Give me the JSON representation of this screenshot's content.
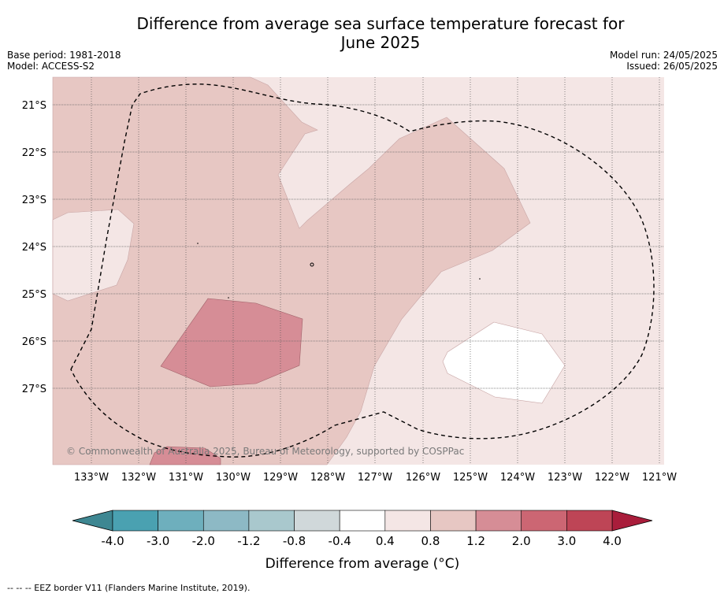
{
  "title_line1": "Difference from average sea surface temperature forecast for",
  "title_line2": "June 2025",
  "base_period": "Base period: 1981-2018",
  "model": "Model: ACCESS-S2",
  "model_run": "Model run: 24/05/2025",
  "issued": "Issued: 26/05/2025",
  "copyright": "© Commonwealth of Australia 2025, Bureau of Meteorology, supported by COSPPac",
  "footnote": "--  --  -- EEZ border V11 (Flanders Marine Institute, 2019).",
  "lat_labels": [
    "21°S",
    "22°S",
    "23°S",
    "24°S",
    "25°S",
    "26°S",
    "27°S"
  ],
  "lon_labels": [
    "133°W",
    "132°W",
    "131°W",
    "130°W",
    "129°W",
    "128°W",
    "127°W",
    "126°W",
    "125°W",
    "124°W",
    "123°W",
    "122°W",
    "121°W"
  ],
  "colorbar": {
    "label": "Difference from average (°C)",
    "tick_labels": [
      "-4.0",
      "-3.0",
      "-2.0",
      "-1.2",
      "-0.8",
      "-0.4",
      "0.4",
      "0.8",
      "1.2",
      "2.0",
      "3.0",
      "4.0"
    ],
    "colors": [
      "#4aa1b1",
      "#6eafbd",
      "#8db9c5",
      "#a9c8cd",
      "#d0d8da",
      "#ffffff",
      "#f4e6e5",
      "#e7c7c3",
      "#d68d96",
      "#cc6673",
      "#be4556"
    ],
    "under_color": "#3e8792",
    "over_color": "#a91d3b"
  },
  "map_colors": {
    "range_0_4_to_0_8": "#f4e6e5",
    "range_0_8_to_1_2": "#e7c7c3",
    "range_1_2_to_2_0": "#d68d96",
    "range_minus0_4_to_0_4": "#ffffff"
  }
}
